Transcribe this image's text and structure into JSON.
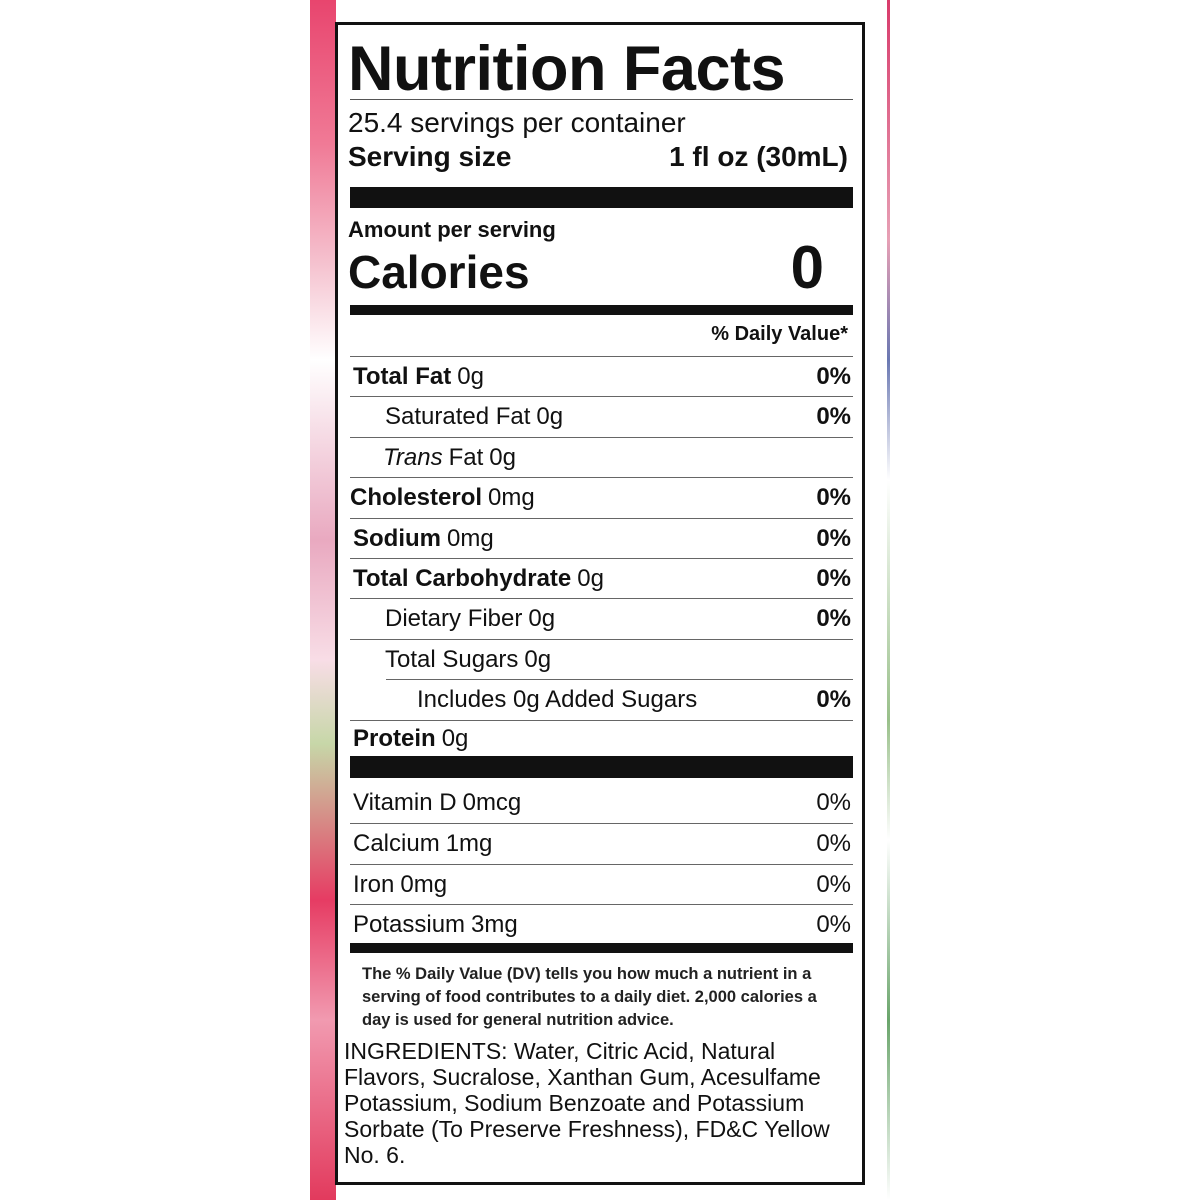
{
  "title": "Nutrition Facts",
  "servings": "25.4 servings per container",
  "serving_size": {
    "label": "Serving size",
    "value": "1 fl oz (30mL)"
  },
  "amount_per_serving": "Amount per serving",
  "calories": {
    "label": "Calories",
    "value": "0"
  },
  "daily_value_header": "% Daily Value*",
  "nutrients": [
    {
      "name": "Total Fat",
      "amount": "0g",
      "dv": "0%"
    },
    {
      "name": "Saturated Fat",
      "amount": "0g",
      "dv": "0%"
    },
    {
      "name_italic": "Trans",
      "name": "Fat",
      "amount": "0g"
    },
    {
      "name": "Cholesterol",
      "amount": "0mg",
      "dv": "0%"
    },
    {
      "name": "Sodium",
      "amount": "0mg",
      "dv": "0%"
    },
    {
      "name": "Total Carbohydrate",
      "amount": "0g",
      "dv": "0%"
    },
    {
      "name": "Dietary Fiber",
      "amount": "0g",
      "dv": "0%"
    },
    {
      "name": "Total Sugars",
      "amount": "0g"
    },
    {
      "name": "Includes 0g Added Sugars",
      "dv": "0%"
    },
    {
      "name": "Protein",
      "amount": "0g"
    }
  ],
  "vitamins": [
    {
      "name": "Vitamin D",
      "amount": "0mcg",
      "dv": "0%"
    },
    {
      "name": "Calcium",
      "amount": "1mg",
      "dv": "0%"
    },
    {
      "name": "Iron",
      "amount": "0mg",
      "dv": "0%"
    },
    {
      "name": "Potassium",
      "amount": "3mg",
      "dv": "0%"
    }
  ],
  "footnote": "The % Daily Value (DV) tells you how much a nutrient in a serving of food contributes to a daily diet. 2,000 calories a day is used for general nutrition advice.",
  "ingredients": "INGREDIENTS: Water, Citric Acid, Natural Flavors, Sucralose, Xanthan Gum, Acesulfame Potassium, Sodium Benzoate and Potassium Sorbate (To Preserve Freshness), FD&C Yellow No. 6."
}
